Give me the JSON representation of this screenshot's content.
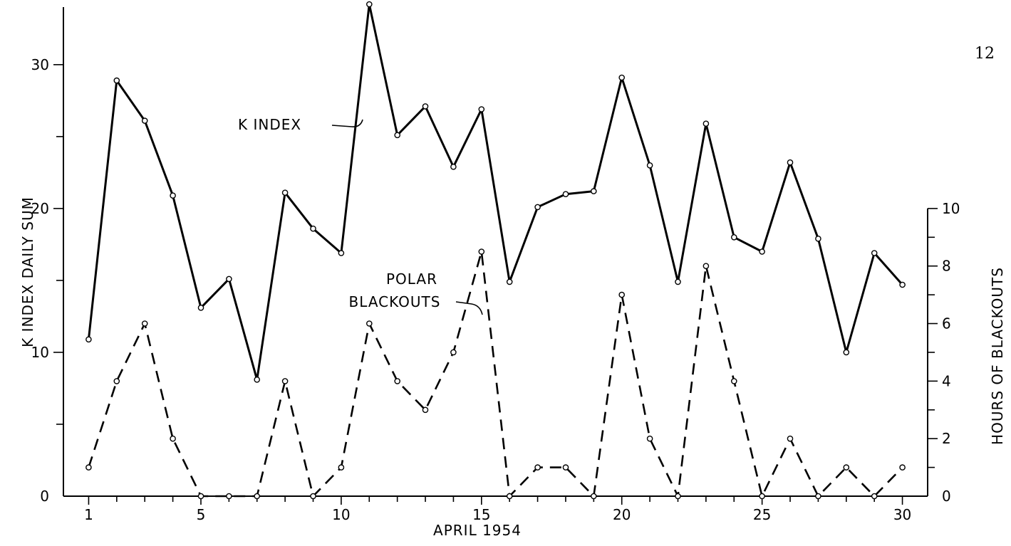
{
  "page_number": "12",
  "chart_data": {
    "type": "line",
    "title": "",
    "xlabel": "APRIL 1954",
    "ylabel_left": "K INDEX DAILY SUM",
    "ylabel_right": "HOURS OF BLACKOUTS",
    "x": [
      1,
      2,
      3,
      4,
      5,
      6,
      7,
      8,
      9,
      10,
      11,
      12,
      13,
      14,
      15,
      16,
      17,
      18,
      19,
      20,
      21,
      22,
      23,
      24,
      25,
      26,
      27,
      28,
      29,
      30
    ],
    "x_ticks": [
      1,
      5,
      10,
      15,
      20,
      25,
      30
    ],
    "x_tick_labels": [
      "1",
      "5",
      "10",
      "15",
      "20",
      "25",
      "30"
    ],
    "xlim": [
      0.1,
      30.9
    ],
    "ylim_left": [
      0,
      34
    ],
    "y_ticks_left": [
      0,
      10,
      20,
      30
    ],
    "y_tick_labels_left": [
      "0",
      "10",
      "20",
      "30"
    ],
    "ylim_right": [
      0,
      17
    ],
    "y_ticks_right": [
      0,
      2,
      4,
      6,
      8,
      10
    ],
    "y_tick_labels_right": [
      "0",
      "2",
      "4",
      "6",
      "8",
      "10"
    ],
    "grid": false,
    "legend": "none",
    "series": [
      {
        "name": "K INDEX",
        "axis": "left",
        "style": "solid",
        "color": "#000000",
        "values": [
          10.9,
          28.9,
          26.1,
          20.9,
          13.1,
          15.1,
          8.1,
          21.1,
          18.6,
          16.9,
          34.2,
          25.1,
          27.1,
          22.9,
          26.9,
          14.9,
          20.1,
          21.0,
          21.2,
          29.1,
          23.0,
          14.9,
          25.9,
          18.0,
          17.0,
          23.2,
          17.9,
          10.0,
          16.9,
          14.7
        ]
      },
      {
        "name": "POLAR BLACKOUTS",
        "name_lines": [
          "POLAR",
          "BLACKOUTS"
        ],
        "axis": "right",
        "style": "dashed",
        "color": "#000000",
        "values": [
          1,
          4,
          6,
          2,
          0,
          0,
          0,
          4,
          0,
          1,
          6,
          4,
          3,
          5,
          8.5,
          0,
          1,
          1,
          0,
          7,
          2,
          0,
          8,
          4,
          0,
          2,
          0,
          1,
          0,
          1
        ]
      }
    ]
  }
}
